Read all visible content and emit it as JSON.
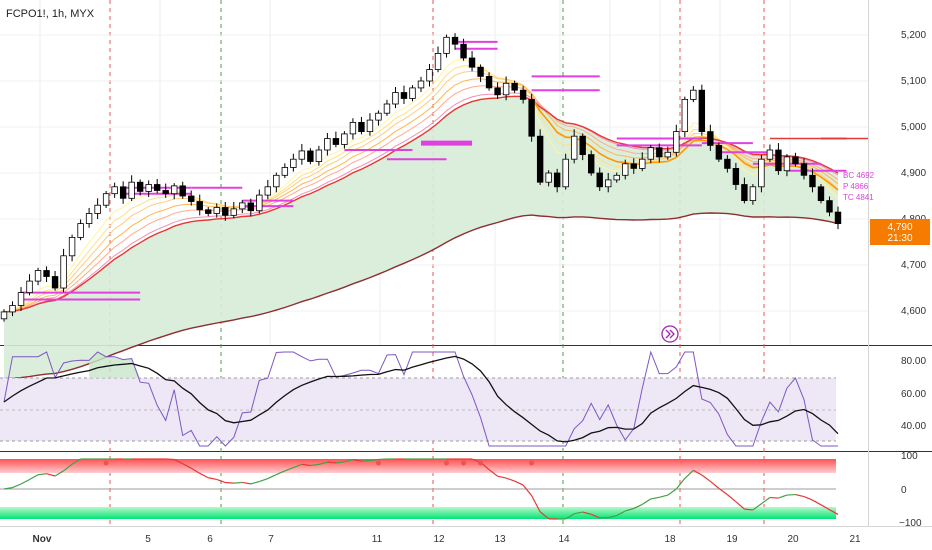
{
  "header": {
    "symbol": "FCPO1!, 1h, MYX"
  },
  "price_pane": {
    "y_ticks": [
      "5,200",
      "5,100",
      "5,000",
      "4,900",
      "4,800",
      "4,700",
      "4,600"
    ],
    "last_price": "4,790",
    "countdown": "21:30",
    "pivot_labels": [
      "BC 4692",
      "P 4866",
      "TC 4841"
    ],
    "colors": {
      "up": "#ffffff",
      "down": "#000000",
      "pivot": "#e040e0",
      "ema_slow": "#e53935",
      "fill": "#c8e6c9",
      "last_badge": "#f57c00"
    }
  },
  "rsi_pane": {
    "y_ticks": [
      "80.00",
      "60.00",
      "40.00"
    ],
    "band_color": "#d1c4e9",
    "line_color": "#7e57c2",
    "ma_color": "#000000"
  },
  "osc_pane": {
    "y_ticks": [
      "100",
      "0",
      "−100"
    ],
    "line_up": "#43a047",
    "line_down": "#e53935"
  },
  "x_axis": {
    "labels": [
      "Nov",
      "5",
      "6",
      "7",
      "11",
      "12",
      "13",
      "14",
      "18",
      "19",
      "20",
      "21"
    ]
  },
  "replay_icon": "fast-forward-icon",
  "chart_data": {
    "type": "candlestick",
    "title": "FCPO1!, 1h, MYX",
    "ylim": [
      4560,
      5230
    ],
    "closes": [
      4598,
      4612,
      4640,
      4665,
      4688,
      4675,
      4650,
      4720,
      4760,
      4790,
      4812,
      4830,
      4855,
      4870,
      4845,
      4880,
      4860,
      4875,
      4862,
      4855,
      4872,
      4850,
      4838,
      4820,
      4812,
      4825,
      4808,
      4822,
      4835,
      4818,
      4852,
      4870,
      4895,
      4912,
      4930,
      4948,
      4925,
      4950,
      4975,
      4962,
      4985,
      5010,
      4990,
      5015,
      5030,
      5050,
      5075,
      5062,
      5085,
      5100,
      5125,
      5160,
      5195,
      5180,
      5150,
      5130,
      5110,
      5085,
      5070,
      5095,
      5080,
      5060,
      4980,
      4880,
      4900,
      4870,
      4930,
      4980,
      4940,
      4900,
      4870,
      4885,
      4895,
      4920,
      4910,
      4930,
      4955,
      4935,
      4945,
      4990,
      5060,
      5080,
      4990,
      4960,
      4930,
      4910,
      4875,
      4840,
      4870,
      4930,
      4950,
      4905,
      4935,
      4920,
      4895,
      4870,
      4840,
      4815,
      4790
    ],
    "rsi_ticks": [
      80,
      60,
      40
    ],
    "osc_ticks": [
      100,
      0,
      -100
    ]
  }
}
